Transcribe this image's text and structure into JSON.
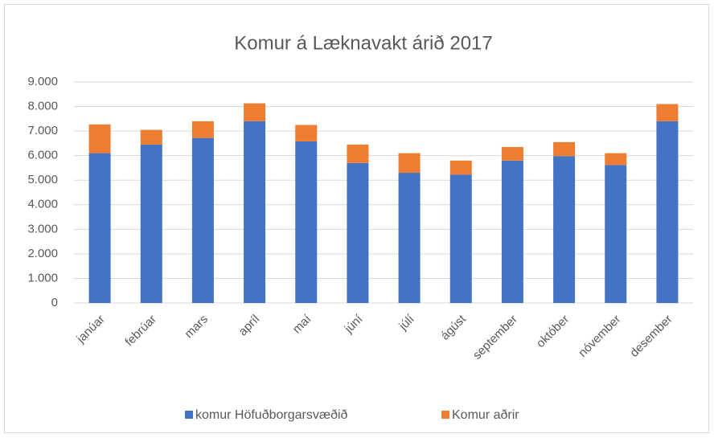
{
  "chart_data": {
    "type": "stacked_bar",
    "title": "Komur á Læknavakt árið 2017",
    "categories": [
      "janúar",
      "febrúar",
      "mars",
      "apríl",
      "maí",
      "júní",
      "júlí",
      "ágúst",
      "september",
      "október",
      "nóvember",
      "desember"
    ],
    "series": [
      {
        "name": "komur Höfuðborgarsvæðið",
        "color": "#4472c4",
        "values": [
          6100,
          6450,
          6720,
          7400,
          6580,
          5700,
          5300,
          5230,
          5800,
          5980,
          5620,
          7400
        ]
      },
      {
        "name": "Komur aðrir",
        "color": "#ed7d31",
        "values": [
          1170,
          600,
          680,
          730,
          670,
          750,
          800,
          570,
          550,
          570,
          480,
          700
        ]
      }
    ],
    "ylim": [
      0,
      9000
    ],
    "yticks": [
      0,
      {
        "value": 1000,
        "label": "1.000"
      },
      {
        "value": 2000,
        "label": "2.000"
      },
      {
        "value": 3000,
        "label": "3.000"
      },
      {
        "value": 4000,
        "label": "4.000"
      },
      {
        "value": 5000,
        "label": "5.000"
      },
      {
        "value": 6000,
        "label": "6.000"
      },
      {
        "value": 7000,
        "label": "7.000"
      },
      {
        "value": 8000,
        "label": "8.000"
      },
      {
        "value": 9000,
        "label": "9.000"
      }
    ],
    "grid": true,
    "legend": "bottom"
  }
}
